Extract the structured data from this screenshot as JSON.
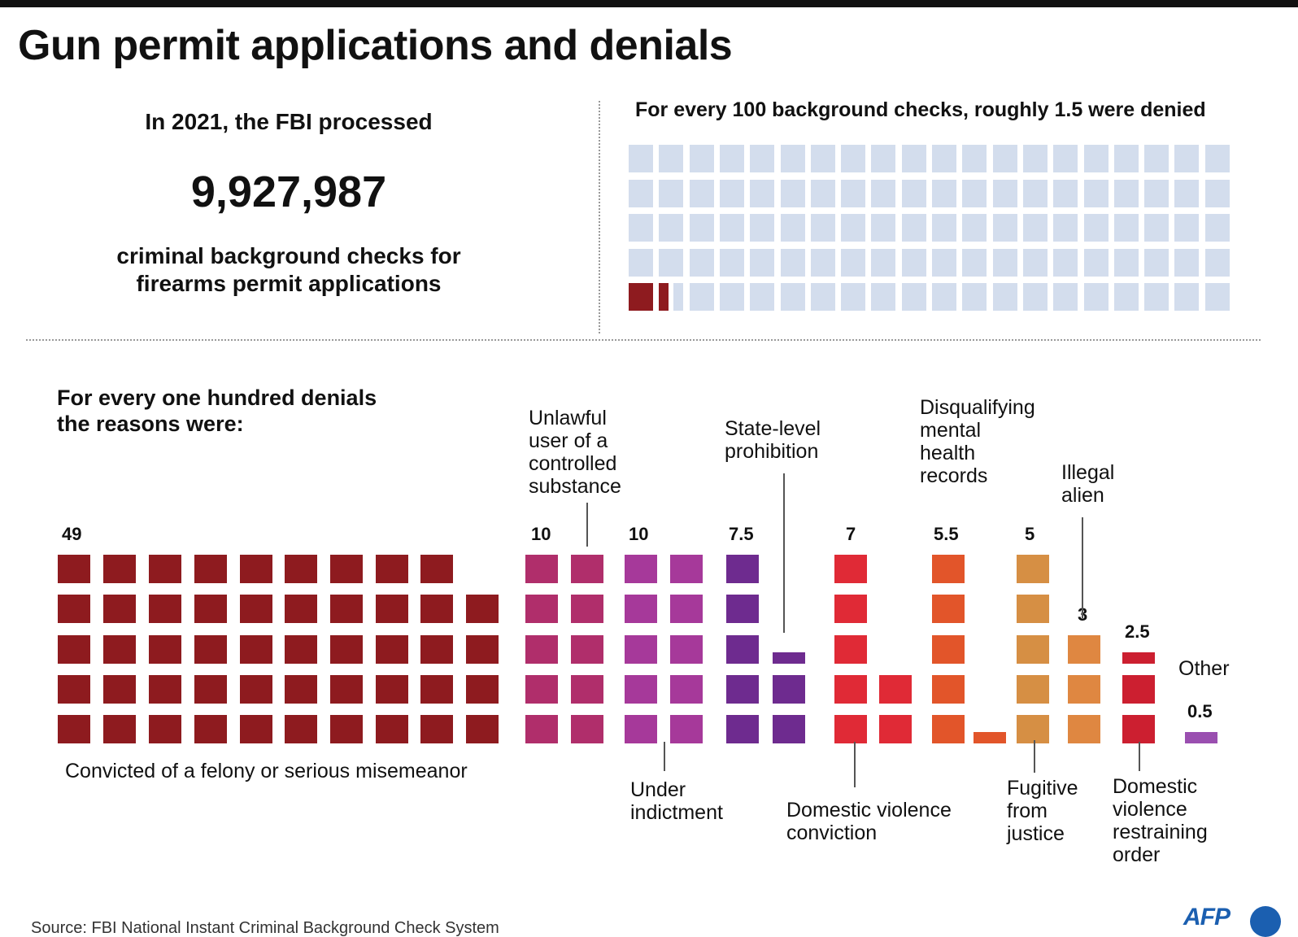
{
  "title": "Gun permit applications and denials",
  "intro": {
    "line1": "In 2021, the FBI processed",
    "number": "9,927,987",
    "line2": "criminal background checks for firearms permit applications"
  },
  "colors": {
    "approved": "#d3dded",
    "denied": "#8e1b1f",
    "felony": "#8e1b1f",
    "controlled_substance": "#b02e6b",
    "indictment": "#a6399a",
    "state_level": "#6e2b8f",
    "domestic_conviction": "#e02a36",
    "mental_health": "#e2552a",
    "fugitive": "#d68f44",
    "illegal_alien": "#df8741",
    "restraining_order": "#cc1f30",
    "other": "#9a4fb0",
    "afp_blue": "#1b5fb0"
  },
  "chart_data": [
    {
      "type": "waffle",
      "title": "For every 100 background checks, roughly 1.5 were denied",
      "total": 100,
      "denied": 1.5
    },
    {
      "type": "waffle",
      "title": "For every one hundred denials the reasons were:",
      "total": 100,
      "categories": [
        {
          "key": "felony",
          "label": "Convicted of a felony or serious misemeanor",
          "value": 49,
          "value_label": "49"
        },
        {
          "key": "controlled_substance",
          "label": "Unlawful\nuser of a\ncontrolled\nsubstance",
          "value": 10,
          "value_label": "10"
        },
        {
          "key": "indictment",
          "label": "Under\nindictment",
          "value": 10,
          "value_label": "10"
        },
        {
          "key": "state_level",
          "label": "State-level\nprohibition",
          "value": 7.5,
          "value_label": "7.5"
        },
        {
          "key": "domestic_conviction",
          "label": "Domestic violence\nconviction",
          "value": 7,
          "value_label": "7"
        },
        {
          "key": "mental_health",
          "label": "Disqualifying\nmental\nhealth\nrecords",
          "value": 5.5,
          "value_label": "5.5"
        },
        {
          "key": "fugitive",
          "label": "Fugitive\nfrom\njustice",
          "value": 5,
          "value_label": "5"
        },
        {
          "key": "illegal_alien",
          "label": "Illegal\nalien",
          "value": 3,
          "value_label": "3"
        },
        {
          "key": "restraining_order",
          "label": "Domestic\nviolence\nrestraining\norder",
          "value": 2.5,
          "value_label": "2.5"
        },
        {
          "key": "other",
          "label": "Other",
          "value": 0.5,
          "value_label": "0.5"
        }
      ]
    }
  ],
  "footer": {
    "source": "Source: FBI National Instant Criminal Background Check System",
    "logo": "AFP"
  }
}
